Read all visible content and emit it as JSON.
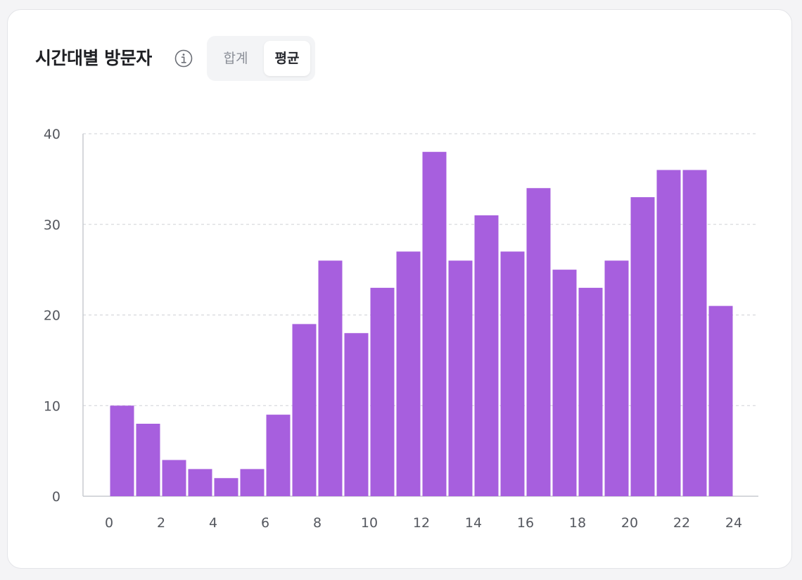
{
  "header": {
    "title": "시간대별 방문자",
    "info_icon": "info-icon",
    "toggle": {
      "options": [
        "합계",
        "평균"
      ],
      "selected": "평균"
    }
  },
  "colors": {
    "bar": "#a75fde",
    "grid": "#cfd1d6",
    "axis": "#c9cbd0",
    "tick_text": "#55585f"
  },
  "chart_data": {
    "type": "bar",
    "x": [
      0,
      1,
      2,
      3,
      4,
      5,
      6,
      7,
      8,
      9,
      10,
      11,
      12,
      13,
      14,
      15,
      16,
      17,
      18,
      19,
      20,
      21,
      22,
      23
    ],
    "values": [
      10,
      8,
      4,
      3,
      2,
      3,
      9,
      19,
      26,
      18,
      23,
      27,
      38,
      26,
      31,
      27,
      34,
      25,
      23,
      26,
      33,
      36,
      36,
      21
    ],
    "xticks": [
      "0",
      "2",
      "4",
      "6",
      "8",
      "10",
      "12",
      "14",
      "16",
      "18",
      "20",
      "22",
      "24"
    ],
    "yticks": [
      "0",
      "10",
      "20",
      "30",
      "40"
    ],
    "xlim": [
      0,
      24
    ],
    "ylim": [
      0,
      40
    ],
    "grid": "horizontal dashed",
    "title": "",
    "xlabel": "",
    "ylabel": ""
  }
}
